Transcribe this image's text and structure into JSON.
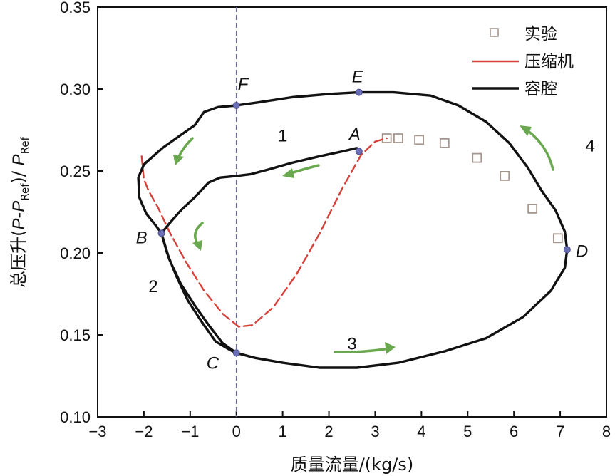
{
  "chart_data": {
    "type": "line",
    "xlabel": "质量流量/(kg/s)",
    "ylabel": {
      "prefix": "总压升(",
      "p1": "P",
      "dash": "-",
      "p2": "P",
      "sub1": "Ref",
      "mid": ")/ ",
      "p3": "P",
      "sub2": "Ref"
    },
    "xlim": [
      -3,
      8
    ],
    "ylim": [
      0.1,
      0.35
    ],
    "xticks": [
      "−3",
      "−2",
      "−1",
      "0",
      "1",
      "2",
      "3",
      "4",
      "5",
      "6",
      "7",
      "8"
    ],
    "yticks": [
      "0.10",
      "0.15",
      "0.20",
      "0.25",
      "0.30",
      "0.35"
    ],
    "grid": false,
    "legend_position": "top-right",
    "legend": [
      {
        "label": "实验",
        "style": "square-markers",
        "color": "#a69890"
      },
      {
        "label": "压缩机",
        "style": "dashed",
        "color": "#d8403a"
      },
      {
        "label": "容腔",
        "style": "solid",
        "color": "#111111"
      }
    ],
    "series": [
      {
        "name": "实验",
        "style": "markers",
        "color": "#a69890",
        "points": [
          [
            3.25,
            0.27
          ],
          [
            3.5,
            0.27
          ],
          [
            3.95,
            0.269
          ],
          [
            4.5,
            0.267
          ],
          [
            5.2,
            0.258
          ],
          [
            5.8,
            0.247
          ],
          [
            6.4,
            0.227
          ],
          [
            6.95,
            0.209
          ]
        ]
      },
      {
        "name": "压缩机",
        "style": "dashed",
        "color": "#d8403a",
        "points": [
          [
            -2.05,
            0.259
          ],
          [
            -2.0,
            0.245
          ],
          [
            -1.9,
            0.238
          ],
          [
            -1.7,
            0.228
          ],
          [
            -1.45,
            0.213
          ],
          [
            -1.1,
            0.195
          ],
          [
            -0.7,
            0.177
          ],
          [
            -0.3,
            0.163
          ],
          [
            0.05,
            0.155
          ],
          [
            0.35,
            0.156
          ],
          [
            0.8,
            0.167
          ],
          [
            1.3,
            0.187
          ],
          [
            1.8,
            0.212
          ],
          [
            2.3,
            0.24
          ],
          [
            2.7,
            0.26
          ],
          [
            3.0,
            0.268
          ],
          [
            3.25,
            0.27
          ]
        ]
      },
      {
        "name": "容腔",
        "style": "solid",
        "color": "#111111",
        "points": [
          [
            2.6,
            0.264
          ],
          [
            2.3,
            0.262
          ],
          [
            1.8,
            0.259
          ],
          [
            1.2,
            0.255
          ],
          [
            0.7,
            0.251
          ],
          [
            0.3,
            0.248
          ],
          [
            0.0,
            0.247
          ],
          [
            -0.35,
            0.246
          ],
          [
            -0.6,
            0.243
          ],
          [
            -0.9,
            0.234
          ],
          [
            -1.2,
            0.226
          ],
          [
            -1.45,
            0.218
          ],
          [
            -1.62,
            0.212
          ],
          [
            -1.5,
            0.2
          ],
          [
            -1.3,
            0.186
          ],
          [
            -1.05,
            0.171
          ],
          [
            -0.75,
            0.158
          ],
          [
            -0.45,
            0.146
          ],
          [
            -0.15,
            0.141
          ],
          [
            0.0,
            0.139
          ],
          [
            0.4,
            0.136
          ],
          [
            1.0,
            0.133
          ],
          [
            1.8,
            0.13
          ],
          [
            2.6,
            0.13
          ],
          [
            3.5,
            0.133
          ],
          [
            4.5,
            0.14
          ],
          [
            5.4,
            0.148
          ],
          [
            6.2,
            0.161
          ],
          [
            6.8,
            0.177
          ],
          [
            7.1,
            0.191
          ],
          [
            7.15,
            0.202
          ],
          [
            7.1,
            0.213
          ],
          [
            6.9,
            0.226
          ],
          [
            6.6,
            0.238
          ],
          [
            6.3,
            0.252
          ],
          [
            5.9,
            0.267
          ],
          [
            5.4,
            0.28
          ],
          [
            4.8,
            0.29
          ],
          [
            4.2,
            0.296
          ],
          [
            3.4,
            0.298
          ],
          [
            2.65,
            0.298
          ],
          [
            2.0,
            0.297
          ],
          [
            1.2,
            0.295
          ],
          [
            0.5,
            0.292
          ],
          [
            0.0,
            0.29
          ],
          [
            -0.4,
            0.289
          ],
          [
            -0.7,
            0.286
          ],
          [
            -0.9,
            0.278
          ],
          [
            -1.2,
            0.272
          ],
          [
            -1.6,
            0.264
          ],
          [
            -2.0,
            0.254
          ],
          [
            -2.12,
            0.246
          ],
          [
            -2.1,
            0.234
          ],
          [
            -1.95,
            0.224
          ],
          [
            -1.75,
            0.217
          ],
          [
            -1.62,
            0.212
          ],
          [
            -1.45,
            0.196
          ],
          [
            -1.2,
            0.181
          ],
          [
            -0.9,
            0.168
          ],
          [
            -0.6,
            0.156
          ],
          [
            -0.3,
            0.145
          ],
          [
            0.0,
            0.139
          ]
        ]
      }
    ],
    "points": [
      {
        "label": "A",
        "x": 2.65,
        "y": 0.262
      },
      {
        "label": "B",
        "x": -1.62,
        "y": 0.212
      },
      {
        "label": "C",
        "x": 0.0,
        "y": 0.139
      },
      {
        "label": "D",
        "x": 7.15,
        "y": 0.202
      },
      {
        "label": "E",
        "x": 2.65,
        "y": 0.298
      },
      {
        "label": "F",
        "x": 0.0,
        "y": 0.29
      }
    ],
    "phase_labels": [
      {
        "label": "1",
        "x": 1.0,
        "y": 0.268
      },
      {
        "label": "2",
        "x": -1.8,
        "y": 0.176
      },
      {
        "label": "3",
        "x": 2.5,
        "y": 0.141
      },
      {
        "label": "4",
        "x": 7.65,
        "y": 0.262
      }
    ],
    "reference_line": {
      "x": 0,
      "style": "dashed",
      "color": "#6a6aa8"
    }
  }
}
